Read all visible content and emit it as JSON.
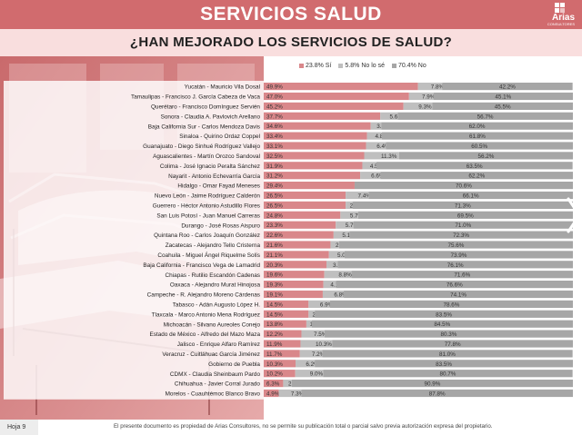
{
  "header": {
    "title": "SERVICIOS SALUD",
    "logo_text": "Arias",
    "logo_subtext": "CONSULTORES"
  },
  "subtitle": "¿HAN MEJORADO LOS SERVICIOS DE SALUD?",
  "legend": {
    "items": [
      {
        "label": "23.8% Sí",
        "color": "#d9878a"
      },
      {
        "label": "5.8% No lo sé",
        "color": "#bfbfbf"
      },
      {
        "label": "70.4% No",
        "color": "#a6a6a6"
      }
    ]
  },
  "chart_data": {
    "type": "bar",
    "orientation": "horizontal",
    "stacked": true,
    "percent_scale": true,
    "categories": [
      "Yucatán - Mauricio Vila Dosal",
      "Tamaulipas - Francisco J. García Cabeza de Vaca",
      "Querétaro - Francisco Domínguez Servién",
      "Sonora - Claudia A. Pavlovich Arellano",
      "Baja California Sur - Carlos Mendoza Davis",
      "Sinaloa - Quirino Ordaz Coppel",
      "Guanajuato - Diego Sinhué Rodríguez Vallejo",
      "Aguascalientes - Martín Orozco Sandoval",
      "Colima - José Ignacio Peralta Sánchez",
      "Nayarit - Antonio Echevarría García",
      "Hidalgo - Omar Fayad Meneses",
      "Nuevo León - Jaime Rodríguez Calderón",
      "Guerrero - Héctor Antonio Astudillo Flores",
      "San Luis Potosí - Juan Manuel Carreras",
      "Durango - José Rosas Aispuro",
      "Quintana Roo - Carlos Joaquín González",
      "Zacatecas - Alejandro Tello Cristerna",
      "Coahuila - Miguel Ángel Riquelme Solís",
      "Baja California - Francisco Vega de Lamadrid",
      "Chiapas - Rutilio Escandón Cadenas",
      "Oaxaca - Alejandro Murat Hinojosa",
      "Campeche - R. Alejandro Moreno Cárdenas",
      "Tabasco - Adán Augusto López H.",
      "Tlaxcala - Marco Antonio Mena Rodríguez",
      "Michoacán - Silvano Aureoles Conejo",
      "Estado de México - Alfredo del Mazo Maza",
      "Jalisco - Enrique Alfaro Ramírez",
      "Veracruz - Cuitláhuac García Jiménez",
      "Gobierno de Puebla",
      "CDMX - Claudia Sheinbaum Pardo",
      "Chihuahua - Javier Corral Jurado",
      "Morelos - Cuauhtémoc Blanco Bravo"
    ],
    "series": [
      {
        "name": "23.8% Sí",
        "color": "#d9878a",
        "values": [
          49.9,
          47.0,
          45.2,
          37.7,
          34.6,
          33.4,
          33.1,
          32.5,
          31.9,
          31.2,
          29.4,
          26.5,
          26.5,
          24.8,
          23.3,
          22.6,
          21.6,
          21.1,
          20.3,
          19.6,
          19.3,
          19.1,
          14.5,
          14.5,
          13.8,
          12.2,
          11.9,
          11.7,
          10.3,
          10.2,
          6.3,
          4.9
        ]
      },
      {
        "name": "5.8% No lo sé",
        "color": "#bfbfbf",
        "values": [
          7.8,
          7.9,
          9.3,
          5.6,
          3.4,
          4.8,
          6.4,
          11.3,
          4.5,
          6.6,
          0.0,
          7.4,
          2.2,
          5.7,
          5.7,
          5.1,
          2.8,
          5.0,
          3.6,
          8.8,
          4.1,
          6.8,
          6.9,
          2.0,
          1.7,
          7.5,
          10.3,
          7.2,
          6.2,
          9.0,
          2.8,
          7.3
        ]
      },
      {
        "name": "70.4% No",
        "color": "#a6a6a6",
        "values": [
          42.2,
          45.1,
          45.5,
          56.7,
          62.0,
          61.8,
          60.5,
          56.2,
          63.5,
          62.2,
          70.6,
          66.1,
          71.3,
          69.5,
          71.0,
          72.3,
          75.6,
          73.9,
          76.1,
          71.6,
          76.6,
          74.1,
          78.6,
          83.5,
          84.5,
          80.3,
          77.8,
          81.0,
          83.5,
          80.7,
          90.9,
          87.8
        ]
      }
    ],
    "labels": [
      [
        "49.9%",
        "7.8%",
        "42.2%"
      ],
      [
        "47.0%",
        "7.9%",
        "45.1%"
      ],
      [
        "45.2%",
        "9.3%",
        "45.5%"
      ],
      [
        "37.7%",
        "5.6%",
        "56.7%"
      ],
      [
        "34.6%",
        "3.4%",
        "62.0%"
      ],
      [
        "33.4%",
        "4.8%",
        "61.8%"
      ],
      [
        "33.1%",
        "6.4%",
        "60.5%"
      ],
      [
        "32.5%",
        "11.3%",
        "56.2%"
      ],
      [
        "31.9%",
        "4.5%",
        "63.5%"
      ],
      [
        "31.2%",
        "6.6%",
        "62.2%"
      ],
      [
        "29.4%",
        "0.0%",
        "70.6%"
      ],
      [
        "26.5%",
        "7.4%",
        "66.1%"
      ],
      [
        "26.5%",
        "2.2%",
        "71.3%"
      ],
      [
        "24.8%",
        "5.7%",
        "69.5%"
      ],
      [
        "23.3%",
        "5.7%",
        "71.0%"
      ],
      [
        "22.6%",
        "5.1%",
        "72.3%"
      ],
      [
        "21.6%",
        "2.8%",
        "75.6%"
      ],
      [
        "21.1%",
        "5.0%",
        "73.9%"
      ],
      [
        "20.3%",
        "3.6%",
        "76.1%"
      ],
      [
        "19.6%",
        "8.8%",
        "71.6%"
      ],
      [
        "19.3%",
        "4.1%",
        "76.6%"
      ],
      [
        "19.1%",
        "6.8%",
        "74.1%"
      ],
      [
        "14.5%",
        "6.9%",
        "78.6%"
      ],
      [
        "14.5%",
        "2.0%",
        "83.5%"
      ],
      [
        "13.8%",
        "1.7%",
        "84.5%"
      ],
      [
        "12.2%",
        "7.5%",
        "80.3%"
      ],
      [
        "11.9%",
        "10.3%",
        "77.8%"
      ],
      [
        "11.7%",
        "7.2%",
        "81.0%"
      ],
      [
        "10.3%",
        "6.2%",
        "83.5%"
      ],
      [
        "10.2%",
        "9.0%",
        "80.7%"
      ],
      [
        "6.3%",
        "2.8%",
        "90.9%"
      ],
      [
        "4.9%",
        "7.3%",
        "87.8%"
      ]
    ],
    "xlim": [
      0,
      100
    ],
    "grid": false,
    "legend_position": "top"
  },
  "footer": {
    "page_label": "Hoja 9",
    "note": "El presente documento es propiedad de Arias Consultores, no se permite su publicación total o parcial salvo previa autorización expresa del propietario."
  },
  "icons": {
    "next": "chevron-right-icon",
    "logo": "building-icon"
  }
}
